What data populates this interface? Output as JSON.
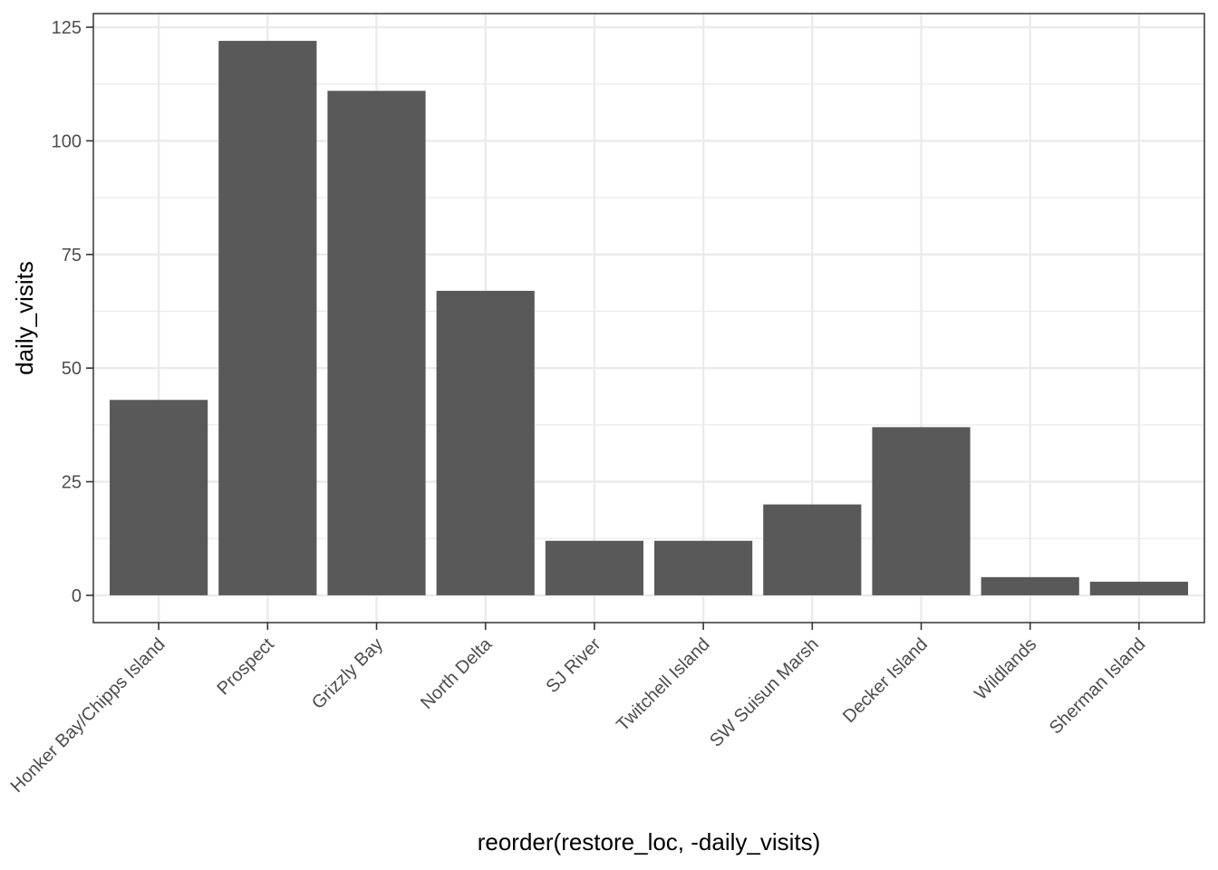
{
  "chart_data": {
    "type": "bar",
    "title": "",
    "xlabel": "reorder(restore_loc, -daily_visits)",
    "ylabel": "daily_visits",
    "categories": [
      "Honker Bay/Chipps Island",
      "Prospect",
      "Grizzly Bay",
      "North Delta",
      "SJ River",
      "Twitchell Island",
      "SW Suisun Marsh",
      "Decker Island",
      "Wildlands",
      "Sherman Island"
    ],
    "values": [
      43,
      122,
      111,
      67,
      12,
      12,
      20,
      37,
      4,
      3
    ],
    "ylim": [
      -6,
      128
    ],
    "yticks": [
      0,
      25,
      50,
      75,
      100,
      125
    ],
    "grid": true,
    "legend": "none",
    "colors": {
      "bar": "#595959",
      "grid": "#ebebeb",
      "panel_border": "#333333",
      "background": "#ffffff"
    }
  }
}
